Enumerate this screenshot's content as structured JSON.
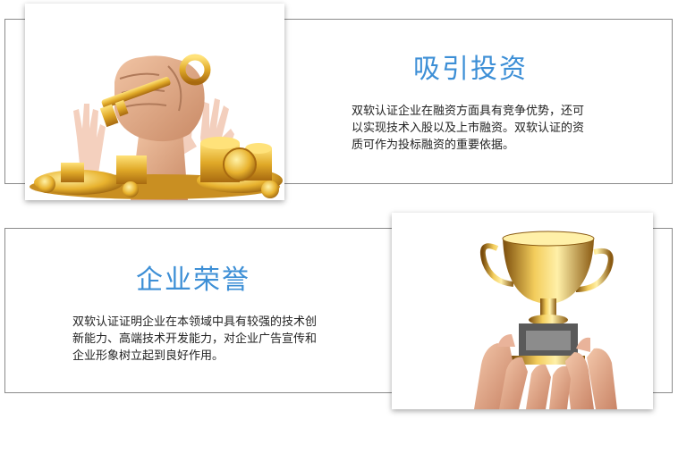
{
  "section_investment": {
    "title": "吸引投资",
    "description": "双软认证企业在融资方面具有竞争优势，还可以实现技术入股以及上市融资。双软认证的资质可作为投标融资的重要依据。",
    "image_icon": "fist-holding-key-with-gold-coins"
  },
  "section_honor": {
    "title": "企业荣誉",
    "description": "双软认证证明企业在本领域中具有较强的技术创新能力、高端技术开发能力，对企业广告宣传和企业形象树立起到良好作用。",
    "image_icon": "hands-holding-trophy"
  },
  "colors": {
    "title_blue": "#3d8fd6",
    "border_gray": "#8a8a8a",
    "text_dark": "#222222",
    "gold": "#d9a520"
  }
}
